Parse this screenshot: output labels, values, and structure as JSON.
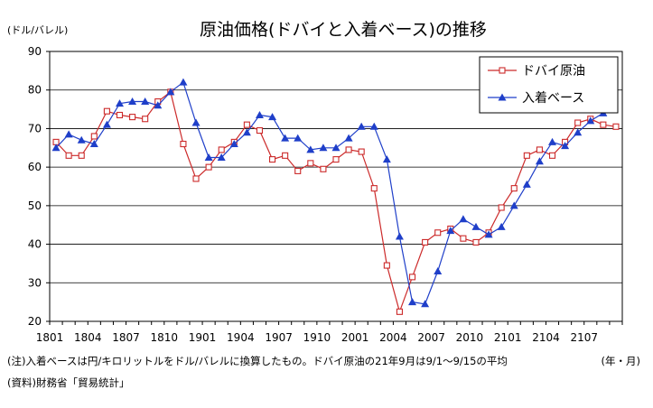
{
  "chart_data": {
    "type": "line",
    "title": "原油価格(ドバイと入着ベース)の推移",
    "ylabel": "(ドル/バレル)",
    "xlabel": "(年・月)",
    "ylim": [
      20,
      90
    ],
    "yticks": [
      20,
      30,
      40,
      50,
      60,
      70,
      80,
      90
    ],
    "xtick_labels": [
      "1801",
      "1804",
      "1807",
      "1810",
      "1901",
      "1904",
      "1907",
      "1910",
      "2001",
      "2004",
      "2007",
      "2010",
      "2101",
      "2104",
      "2107"
    ],
    "grid": true,
    "legend_position": "top-right",
    "series": [
      {
        "name": "ドバイ原油",
        "color": "#cc2a2a",
        "marker": "square-open",
        "values": [
          66.5,
          63.0,
          63.0,
          68.0,
          74.5,
          73.5,
          73.0,
          72.5,
          77.0,
          79.5,
          66.0,
          57.0,
          60.0,
          64.5,
          66.5,
          71.0,
          69.5,
          62.0,
          63.0,
          59.0,
          61.0,
          59.5,
          62.0,
          64.5,
          64.0,
          54.5,
          34.5,
          22.5,
          31.5,
          40.5,
          43.0,
          44.0,
          41.5,
          40.5,
          43.0,
          49.5,
          54.5,
          63.0,
          64.5,
          63.0,
          66.5,
          71.5,
          72.5,
          71.0,
          70.5
        ]
      },
      {
        "name": "入着ベース",
        "color": "#1f3fc9",
        "marker": "triangle-filled",
        "values": [
          65.0,
          68.5,
          67.0,
          66.0,
          71.0,
          76.5,
          77.0,
          77.0,
          76.0,
          79.5,
          82.0,
          71.5,
          62.5,
          62.5,
          66.0,
          69.0,
          73.5,
          73.0,
          67.5,
          67.5,
          64.5,
          65.0,
          65.0,
          67.5,
          70.5,
          70.5,
          62.0,
          42.0,
          25.0,
          24.5,
          33.0,
          43.5,
          46.5,
          44.5,
          42.5,
          44.5,
          50.0,
          55.5,
          61.5,
          66.5,
          65.5,
          69.0,
          72.0,
          74.0,
          null
        ]
      }
    ]
  },
  "notes": {
    "note1": "(注)入着ベースは円/キロリットルをドル/バレルに換算したもの。ドバイ原油の21年9月は9/1～9/15の平均",
    "source": "(資料)財務省「貿易統計」"
  }
}
